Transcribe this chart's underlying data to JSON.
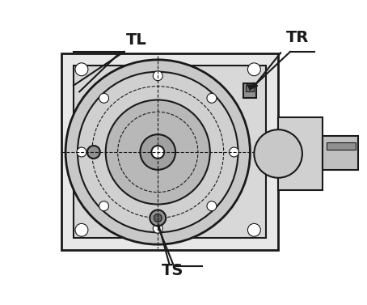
{
  "title": "",
  "background_color": "#ffffff",
  "line_color": "#1a1a1a",
  "label_TL": "TL",
  "label_TR": "TR",
  "label_TS": "TS",
  "label_fontsize": 14,
  "label_fontweight": "bold",
  "fig_width": 4.54,
  "fig_height": 3.77,
  "dpi": 100
}
